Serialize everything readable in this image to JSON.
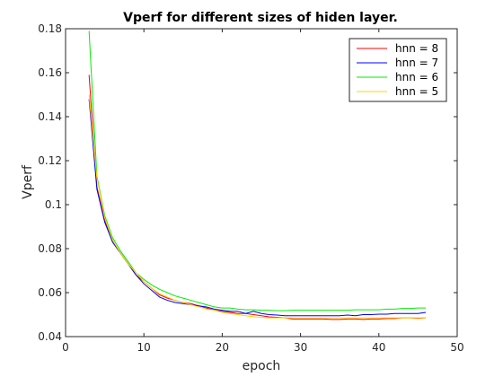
{
  "chart_data": {
    "type": "line",
    "title": "Vperf for different sizes of hiden layer.",
    "xlabel": "epoch",
    "ylabel": "Vperf",
    "xlim": [
      0,
      50
    ],
    "ylim": [
      0.04,
      0.18
    ],
    "xticks": [
      0,
      10,
      20,
      30,
      40,
      50
    ],
    "yticks": [
      0.04,
      0.06,
      0.08,
      0.1,
      0.12,
      0.14,
      0.16,
      0.18
    ],
    "ytick_labels": [
      "0.04",
      "0.06",
      "0.08",
      "0.1",
      "0.12",
      "0.14",
      "0.16",
      "0.18"
    ],
    "grid": false,
    "legend_position": "top-right",
    "x": [
      3,
      4,
      5,
      6,
      7,
      8,
      9,
      10,
      11,
      12,
      13,
      14,
      15,
      16,
      17,
      18,
      19,
      20,
      21,
      22,
      23,
      24,
      25,
      26,
      27,
      28,
      29,
      30,
      31,
      32,
      33,
      34,
      35,
      36,
      37,
      38,
      39,
      40,
      41,
      42,
      43,
      44,
      45,
      46
    ],
    "series": [
      {
        "name": "hnn = 8",
        "color": "#ff0000",
        "values": [
          0.159,
          0.108,
          0.093,
          0.083,
          0.078,
          0.073,
          0.068,
          0.065,
          0.062,
          0.059,
          0.0575,
          0.0565,
          0.0555,
          0.055,
          0.054,
          0.053,
          0.052,
          0.0515,
          0.051,
          0.0505,
          0.0505,
          0.05,
          0.0495,
          0.049,
          0.0488,
          0.0485,
          0.048,
          0.048,
          0.048,
          0.048,
          0.048,
          0.0478,
          0.0478,
          0.048,
          0.048,
          0.0478,
          0.048,
          0.048,
          0.0482,
          0.0482,
          0.0485,
          0.0485,
          0.0483,
          0.0485
        ]
      },
      {
        "name": "hnn = 7",
        "color": "#0000ff",
        "values": [
          0.148,
          0.107,
          0.092,
          0.083,
          0.078,
          0.073,
          0.068,
          0.064,
          0.061,
          0.058,
          0.0565,
          0.0555,
          0.055,
          0.0545,
          0.054,
          0.0535,
          0.0525,
          0.052,
          0.0515,
          0.0515,
          0.0505,
          0.0515,
          0.0505,
          0.05,
          0.0498,
          0.0495,
          0.0495,
          0.0495,
          0.0495,
          0.0495,
          0.0495,
          0.0495,
          0.0495,
          0.0498,
          0.0495,
          0.05,
          0.05,
          0.0502,
          0.0502,
          0.0505,
          0.0505,
          0.0505,
          0.0505,
          0.051
        ]
      },
      {
        "name": "hnn = 6",
        "color": "#00ee00",
        "values": [
          0.179,
          0.113,
          0.095,
          0.085,
          0.079,
          0.074,
          0.069,
          0.066,
          0.0635,
          0.0615,
          0.06,
          0.0585,
          0.0575,
          0.0565,
          0.0555,
          0.0545,
          0.0535,
          0.053,
          0.053,
          0.0525,
          0.0522,
          0.0522,
          0.052,
          0.052,
          0.0518,
          0.0518,
          0.052,
          0.052,
          0.052,
          0.052,
          0.052,
          0.052,
          0.052,
          0.052,
          0.0522,
          0.0522,
          0.0522,
          0.0522,
          0.0525,
          0.0525,
          0.0528,
          0.0528,
          0.053,
          0.053
        ]
      },
      {
        "name": "hnn = 5",
        "color": "#ffd700",
        "values": [
          0.15,
          0.112,
          0.094,
          0.084,
          0.078,
          0.073,
          0.069,
          0.065,
          0.062,
          0.0595,
          0.058,
          0.0565,
          0.0555,
          0.0545,
          0.0535,
          0.0525,
          0.052,
          0.051,
          0.0505,
          0.05,
          0.0495,
          0.049,
          0.0488,
          0.0485,
          0.0485,
          0.0485,
          0.0485,
          0.0485,
          0.0485,
          0.0485,
          0.0485,
          0.0485,
          0.0485,
          0.0485,
          0.0485,
          0.0485,
          0.0485,
          0.0485,
          0.0485,
          0.0485,
          0.0485,
          0.0485,
          0.0485,
          0.0485
        ]
      }
    ]
  }
}
